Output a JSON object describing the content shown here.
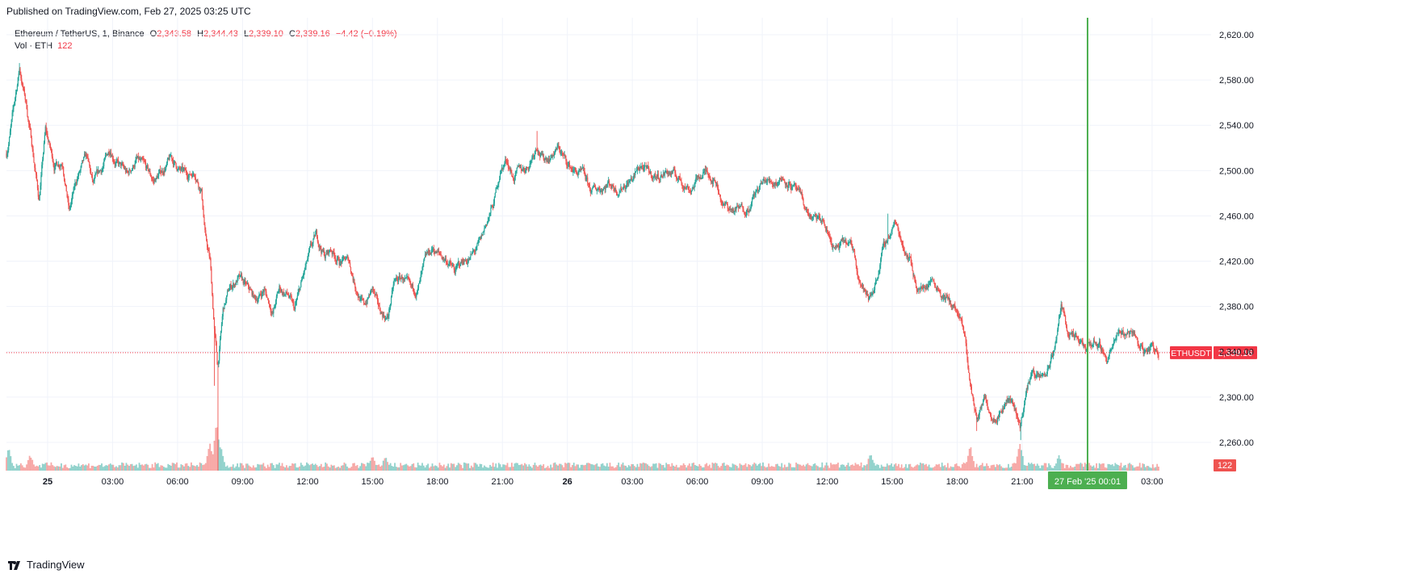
{
  "header": {
    "published": "Published on TradingView.com, Feb 27, 2025 03:25 UTC"
  },
  "legend": {
    "symbol": "Ethereum / TetherUS, 1, Binance",
    "open_label": "O",
    "open": "2,343.58",
    "high_label": "H",
    "high": "2,344.43",
    "low_label": "L",
    "low": "2,339.10",
    "close_label": "C",
    "close": "2,339.16",
    "change": "−4.42 (−0.19%)",
    "volume_label": "Vol · ETH",
    "volume": "122"
  },
  "footer": {
    "brand": "TradingView",
    "brand_icon": "tradingview-logo-icon"
  },
  "colors": {
    "up": "#26a69a",
    "down": "#ef5350",
    "price_line": "#f23645",
    "cursor": "#4caf50",
    "grid": "#f0f3fa",
    "text": "#131722"
  },
  "chart_data": {
    "type": "candlestick",
    "symbol_badge": "ETHUSDT",
    "last_price": 2339.16,
    "last_price_label": "2,339.16",
    "volume_badge": "122",
    "ylim": [
      2235,
      2635
    ],
    "y_ticks": [
      2260,
      2300,
      2340,
      2380,
      2420,
      2460,
      2500,
      2540,
      2580,
      2620
    ],
    "y_tick_labels": [
      "2,260.00",
      "2,300.00",
      "2,340.00",
      "2,380.00",
      "2,420.00",
      "2,460.00",
      "2,500.00",
      "2,540.00",
      "2,580.00",
      "2,620.00"
    ],
    "x_ticks": [
      {
        "label": "25",
        "hour": 0,
        "bold": true
      },
      {
        "label": "03:00",
        "hour": 3
      },
      {
        "label": "06:00",
        "hour": 6
      },
      {
        "label": "09:00",
        "hour": 9
      },
      {
        "label": "12:00",
        "hour": 12
      },
      {
        "label": "15:00",
        "hour": 15
      },
      {
        "label": "18:00",
        "hour": 18
      },
      {
        "label": "21:00",
        "hour": 21
      },
      {
        "label": "26",
        "hour": 24,
        "bold": true
      },
      {
        "label": "03:00",
        "hour": 27
      },
      {
        "label": "06:00",
        "hour": 30
      },
      {
        "label": "09:00",
        "hour": 33
      },
      {
        "label": "12:00",
        "hour": 36
      },
      {
        "label": "15:00",
        "hour": 39
      },
      {
        "label": "18:00",
        "hour": 42
      },
      {
        "label": "21:00",
        "hour": 45
      },
      {
        "label": "03:00",
        "hour": 51
      }
    ],
    "xlim_hours": [
      -1.9,
      51.6
    ],
    "crosshair": {
      "hour": 48.02,
      "label": "27 Feb '25   00:01"
    },
    "price_path": [
      [
        -1.9,
        2515
      ],
      [
        -1.6,
        2550
      ],
      [
        -1.3,
        2590
      ],
      [
        -1.0,
        2560
      ],
      [
        -0.7,
        2520
      ],
      [
        -0.4,
        2475
      ],
      [
        -0.1,
        2535
      ],
      [
        0.3,
        2505
      ],
      [
        0.7,
        2510
      ],
      [
        1.0,
        2465
      ],
      [
        1.4,
        2495
      ],
      [
        1.8,
        2510
      ],
      [
        2.1,
        2485
      ],
      [
        2.5,
        2500
      ],
      [
        2.9,
        2520
      ],
      [
        3.3,
        2505
      ],
      [
        3.7,
        2495
      ],
      [
        4.1,
        2510
      ],
      [
        4.5,
        2500
      ],
      [
        4.9,
        2490
      ],
      [
        5.3,
        2500
      ],
      [
        5.7,
        2510
      ],
      [
        6.1,
        2500
      ],
      [
        6.4,
        2495
      ],
      [
        6.8,
        2500
      ],
      [
        7.1,
        2485
      ],
      [
        7.3,
        2440
      ],
      [
        7.5,
        2420
      ],
      [
        7.7,
        2360
      ],
      [
        7.85,
        2325
      ],
      [
        8.1,
        2375
      ],
      [
        8.4,
        2395
      ],
      [
        8.8,
        2405
      ],
      [
        9.2,
        2395
      ],
      [
        9.6,
        2385
      ],
      [
        10.0,
        2395
      ],
      [
        10.4,
        2375
      ],
      [
        10.7,
        2395
      ],
      [
        11.1,
        2390
      ],
      [
        11.4,
        2375
      ],
      [
        11.8,
        2405
      ],
      [
        12.1,
        2425
      ],
      [
        12.4,
        2440
      ],
      [
        12.8,
        2425
      ],
      [
        13.1,
        2430
      ],
      [
        13.5,
        2420
      ],
      [
        13.9,
        2420
      ],
      [
        14.2,
        2400
      ],
      [
        14.6,
        2380
      ],
      [
        15.0,
        2395
      ],
      [
        15.3,
        2375
      ],
      [
        15.7,
        2370
      ],
      [
        16.0,
        2400
      ],
      [
        16.4,
        2405
      ],
      [
        16.8,
        2390
      ],
      [
        17.1,
        2395
      ],
      [
        17.5,
        2420
      ],
      [
        17.8,
        2430
      ],
      [
        18.1,
        2425
      ],
      [
        18.5,
        2420
      ],
      [
        18.8,
        2410
      ],
      [
        19.2,
        2420
      ],
      [
        19.6,
        2425
      ],
      [
        20.0,
        2435
      ],
      [
        20.3,
        2455
      ],
      [
        20.6,
        2470
      ],
      [
        20.9,
        2500
      ],
      [
        21.2,
        2510
      ],
      [
        21.5,
        2495
      ],
      [
        21.9,
        2500
      ],
      [
        22.2,
        2505
      ],
      [
        22.6,
        2525
      ],
      [
        22.9,
        2510
      ],
      [
        23.3,
        2515
      ],
      [
        23.6,
        2520
      ],
      [
        24.0,
        2505
      ],
      [
        24.3,
        2500
      ],
      [
        24.7,
        2495
      ],
      [
        25.1,
        2480
      ],
      [
        25.5,
        2485
      ],
      [
        25.9,
        2490
      ],
      [
        26.3,
        2485
      ],
      [
        26.7,
        2490
      ],
      [
        27.1,
        2495
      ],
      [
        27.4,
        2505
      ],
      [
        27.8,
        2495
      ],
      [
        28.2,
        2495
      ],
      [
        28.6,
        2500
      ],
      [
        29.0,
        2495
      ],
      [
        29.3,
        2490
      ],
      [
        29.7,
        2485
      ],
      [
        30.1,
        2495
      ],
      [
        30.5,
        2500
      ],
      [
        30.9,
        2490
      ],
      [
        31.2,
        2470
      ],
      [
        31.6,
        2465
      ],
      [
        32.0,
        2465
      ],
      [
        32.4,
        2470
      ],
      [
        32.7,
        2480
      ],
      [
        33.1,
        2490
      ],
      [
        33.5,
        2490
      ],
      [
        33.9,
        2495
      ],
      [
        34.3,
        2490
      ],
      [
        34.6,
        2480
      ],
      [
        35.0,
        2465
      ],
      [
        35.4,
        2455
      ],
      [
        35.8,
        2455
      ],
      [
        36.1,
        2440
      ],
      [
        36.4,
        2430
      ],
      [
        36.8,
        2435
      ],
      [
        37.2,
        2430
      ],
      [
        37.5,
        2405
      ],
      [
        37.9,
        2385
      ],
      [
        38.2,
        2400
      ],
      [
        38.5,
        2425
      ],
      [
        38.8,
        2440
      ],
      [
        39.1,
        2455
      ],
      [
        39.5,
        2435
      ],
      [
        39.8,
        2425
      ],
      [
        40.1,
        2400
      ],
      [
        40.4,
        2395
      ],
      [
        40.8,
        2405
      ],
      [
        41.1,
        2400
      ],
      [
        41.4,
        2390
      ],
      [
        41.8,
        2380
      ],
      [
        42.1,
        2370
      ],
      [
        42.4,
        2345
      ],
      [
        42.6,
        2310
      ],
      [
        42.9,
        2280
      ],
      [
        43.3,
        2300
      ],
      [
        43.6,
        2285
      ],
      [
        44.0,
        2290
      ],
      [
        44.3,
        2300
      ],
      [
        44.6,
        2295
      ],
      [
        44.9,
        2275
      ],
      [
        45.2,
        2305
      ],
      [
        45.5,
        2325
      ],
      [
        45.8,
        2315
      ],
      [
        46.1,
        2320
      ],
      [
        46.4,
        2335
      ],
      [
        46.6,
        2355
      ],
      [
        46.8,
        2380
      ],
      [
        47.1,
        2360
      ],
      [
        47.4,
        2350
      ],
      [
        47.7,
        2345
      ],
      [
        48.0,
        2340
      ],
      [
        48.3,
        2350
      ],
      [
        48.6,
        2345
      ],
      [
        48.9,
        2335
      ],
      [
        49.2,
        2345
      ],
      [
        49.5,
        2355
      ],
      [
        49.8,
        2355
      ],
      [
        50.1,
        2360
      ],
      [
        50.4,
        2345
      ],
      [
        50.7,
        2340
      ],
      [
        51.0,
        2345
      ],
      [
        51.3,
        2339
      ]
    ],
    "volume_spikes": [
      {
        "hour": 7.8,
        "rel": 1.0
      },
      {
        "hour": 7.5,
        "rel": 0.55
      },
      {
        "hour": 8.0,
        "rel": 0.5
      },
      {
        "hour": 42.6,
        "rel": 0.5
      },
      {
        "hour": 44.9,
        "rel": 0.55
      },
      {
        "hour": 38.0,
        "rel": 0.35
      },
      {
        "hour": -1.8,
        "rel": 0.45
      },
      {
        "hour": -0.8,
        "rel": 0.3
      },
      {
        "hour": 15.0,
        "rel": 0.3
      },
      {
        "hour": 15.6,
        "rel": 0.28
      },
      {
        "hour": 46.7,
        "rel": 0.3
      }
    ]
  }
}
